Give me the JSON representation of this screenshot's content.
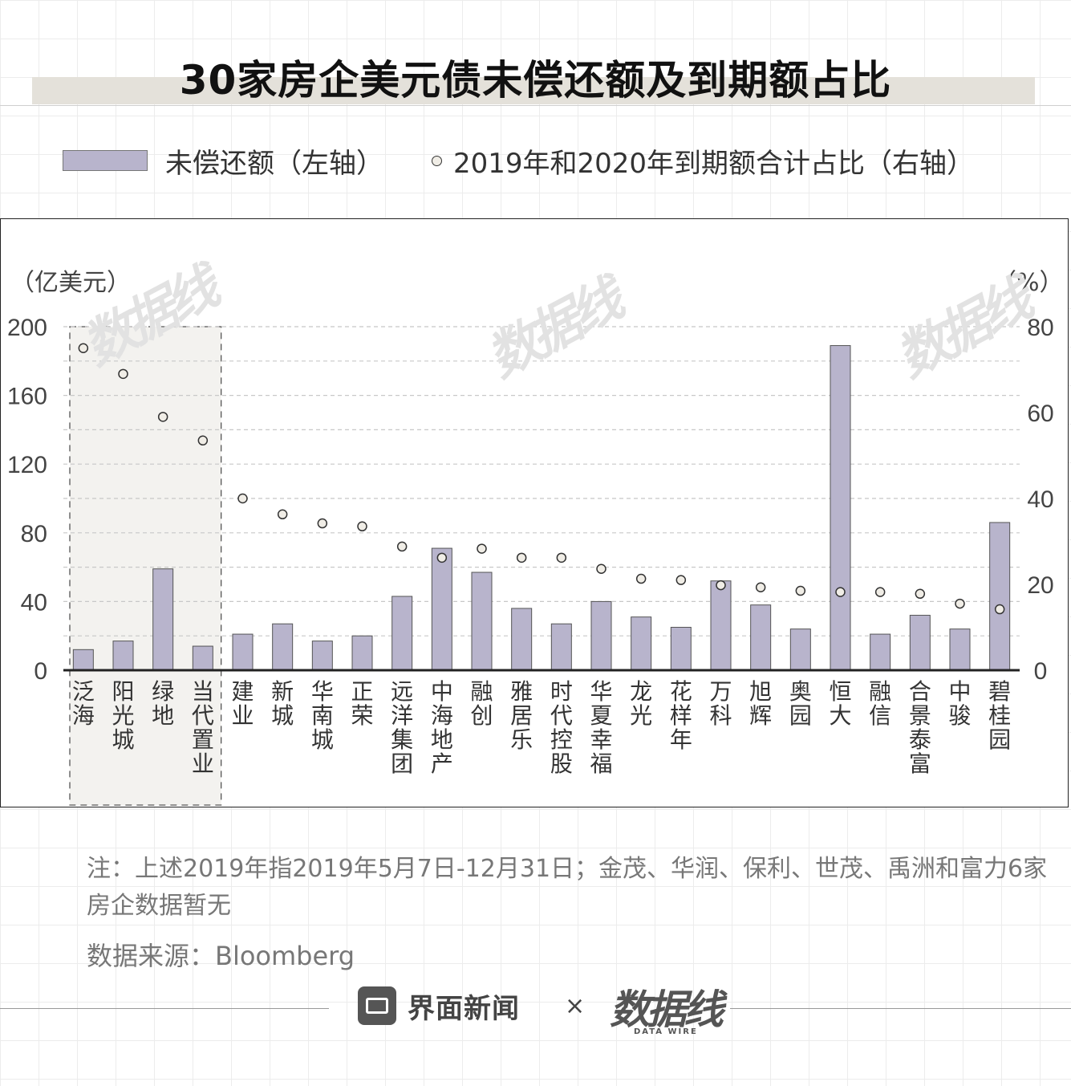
{
  "title": "30家房企美元债未偿还额及到期额占比",
  "legend": {
    "bar_label": "未偿还额（左轴）",
    "dot_label": "2019年和2020年到期额合计占比（右轴）"
  },
  "units": {
    "left": "（亿美元）",
    "right": "（%）"
  },
  "note": "注：上述2019年指2019年5月7日-12月31日；金茂、华润、保利、世茂、禹洲和富力6家房企数据暂无",
  "source": "数据来源：Bloomberg",
  "footer": {
    "brand": "界面新闻",
    "times": "×",
    "partner": "数据线",
    "partner_en": "DATA WIRE"
  },
  "watermark": "数据线",
  "colors": {
    "bar": "#b8b4cc",
    "bar_stroke": "#555555",
    "dot_fill": "#f0ede6",
    "highlight_bg": "#f3f2ef"
  },
  "chart_data": {
    "type": "bar",
    "categories": [
      "泛海",
      "阳光城",
      "绿地",
      "当代置业",
      "建业",
      "新城",
      "华南城",
      "正荣",
      "远洋集团",
      "中海地产",
      "融创",
      "雅居乐",
      "时代控股",
      "华夏幸福",
      "龙光",
      "花样年",
      "万科",
      "旭辉",
      "奥园",
      "恒大",
      "融信",
      "合景泰富",
      "中骏",
      "碧桂园"
    ],
    "series": [
      {
        "name": "未偿还额（左轴）",
        "axis": "left",
        "type": "bar",
        "values": [
          12,
          17,
          59,
          14,
          21,
          27,
          17,
          20,
          43,
          71,
          57,
          36,
          27,
          40,
          31,
          25,
          52,
          38,
          24,
          189,
          21,
          32,
          24,
          86
        ]
      },
      {
        "name": "2019年和2020年到期额合计占比（右轴）",
        "axis": "right",
        "type": "scatter",
        "values": [
          75,
          69,
          59,
          53.5,
          40,
          36.3,
          34.2,
          33.5,
          28.8,
          26.2,
          28.3,
          26.2,
          26.2,
          23.6,
          21.3,
          21,
          19.8,
          19.3,
          18.5,
          18.2,
          18.2,
          17.8,
          15.5,
          14.2
        ]
      }
    ],
    "left_axis": {
      "ticks": [
        0,
        40,
        80,
        120,
        160,
        200
      ],
      "range": [
        0,
        200
      ]
    },
    "right_axis": {
      "ticks": [
        0,
        20,
        40,
        60,
        80
      ],
      "range": [
        0,
        80
      ]
    },
    "highlighted_categories": [
      "泛海",
      "阳光城",
      "绿地",
      "当代置业"
    ],
    "grid": "dashed horizontal"
  }
}
